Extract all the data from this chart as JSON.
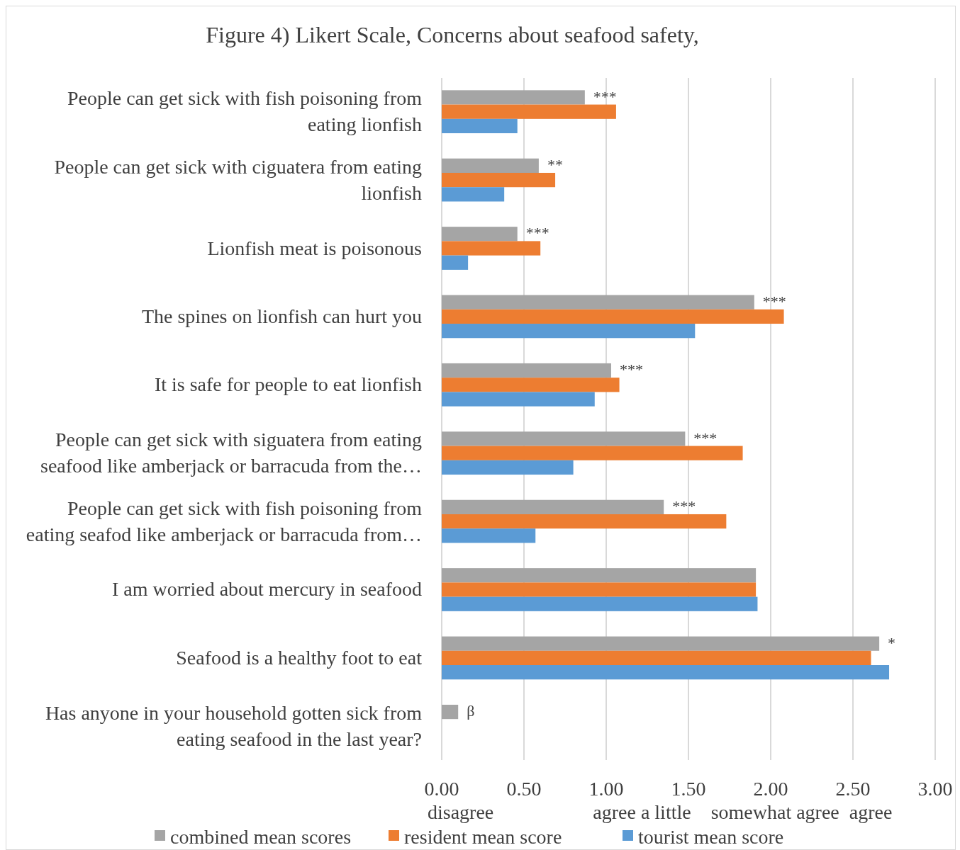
{
  "chart_data": {
    "type": "bar",
    "orientation": "horizontal",
    "title": "Figure 4) Likert Scale,  Concerns about seafood safety,",
    "categories": [
      "People can get sick with fish poisoning from eating lionfish",
      "People can get sick with ciguatera from eating lionfish",
      "Lionfish meat is poisonous",
      "The spines on lionfish can hurt you",
      "It is safe for people to eat lionfish",
      "People can get sick with siguatera from eating seafood like amberjack or barracuda from the…",
      "People can get sick with fish poisoning from eating seafod like amberjack or barracuda from…",
      "I am worried about mercury in seafood",
      "Seafood is a healthy foot to eat",
      "Has anyone in your household gotten sick from eating seafood in the last year?"
    ],
    "series": [
      {
        "name": "combined mean scores",
        "color": "#a5a5a5",
        "values": [
          0.87,
          0.59,
          0.46,
          1.9,
          1.03,
          1.48,
          1.35,
          1.91,
          2.66,
          0.1
        ],
        "value_labels": [
          "***",
          "**",
          "***",
          "***",
          "***",
          "***",
          "***",
          null,
          "*",
          "β"
        ]
      },
      {
        "name": "resident mean score",
        "color": "#ed7d31",
        "values": [
          1.06,
          0.69,
          0.6,
          2.08,
          1.08,
          1.83,
          1.73,
          1.91,
          2.61,
          null
        ]
      },
      {
        "name": "tourist mean score",
        "color": "#5b9bd5",
        "values": [
          0.46,
          0.38,
          0.16,
          1.54,
          0.93,
          0.8,
          0.57,
          1.92,
          2.72,
          null
        ]
      }
    ],
    "xlim": [
      0,
      3
    ],
    "xticks": [
      {
        "value": 0,
        "label": "0.00"
      },
      {
        "value": 0.5,
        "label": "0.50"
      },
      {
        "value": 1,
        "label": "1.00"
      },
      {
        "value": 1.5,
        "label": "1.50"
      },
      {
        "value": 2,
        "label": "2.00"
      },
      {
        "value": 2.5,
        "label": "2.50"
      },
      {
        "value": 3,
        "label": "3.00"
      }
    ],
    "xlabel": "disagree                    agree a little    somewhat agree  agree",
    "grid": "x",
    "legend": "bottom"
  }
}
